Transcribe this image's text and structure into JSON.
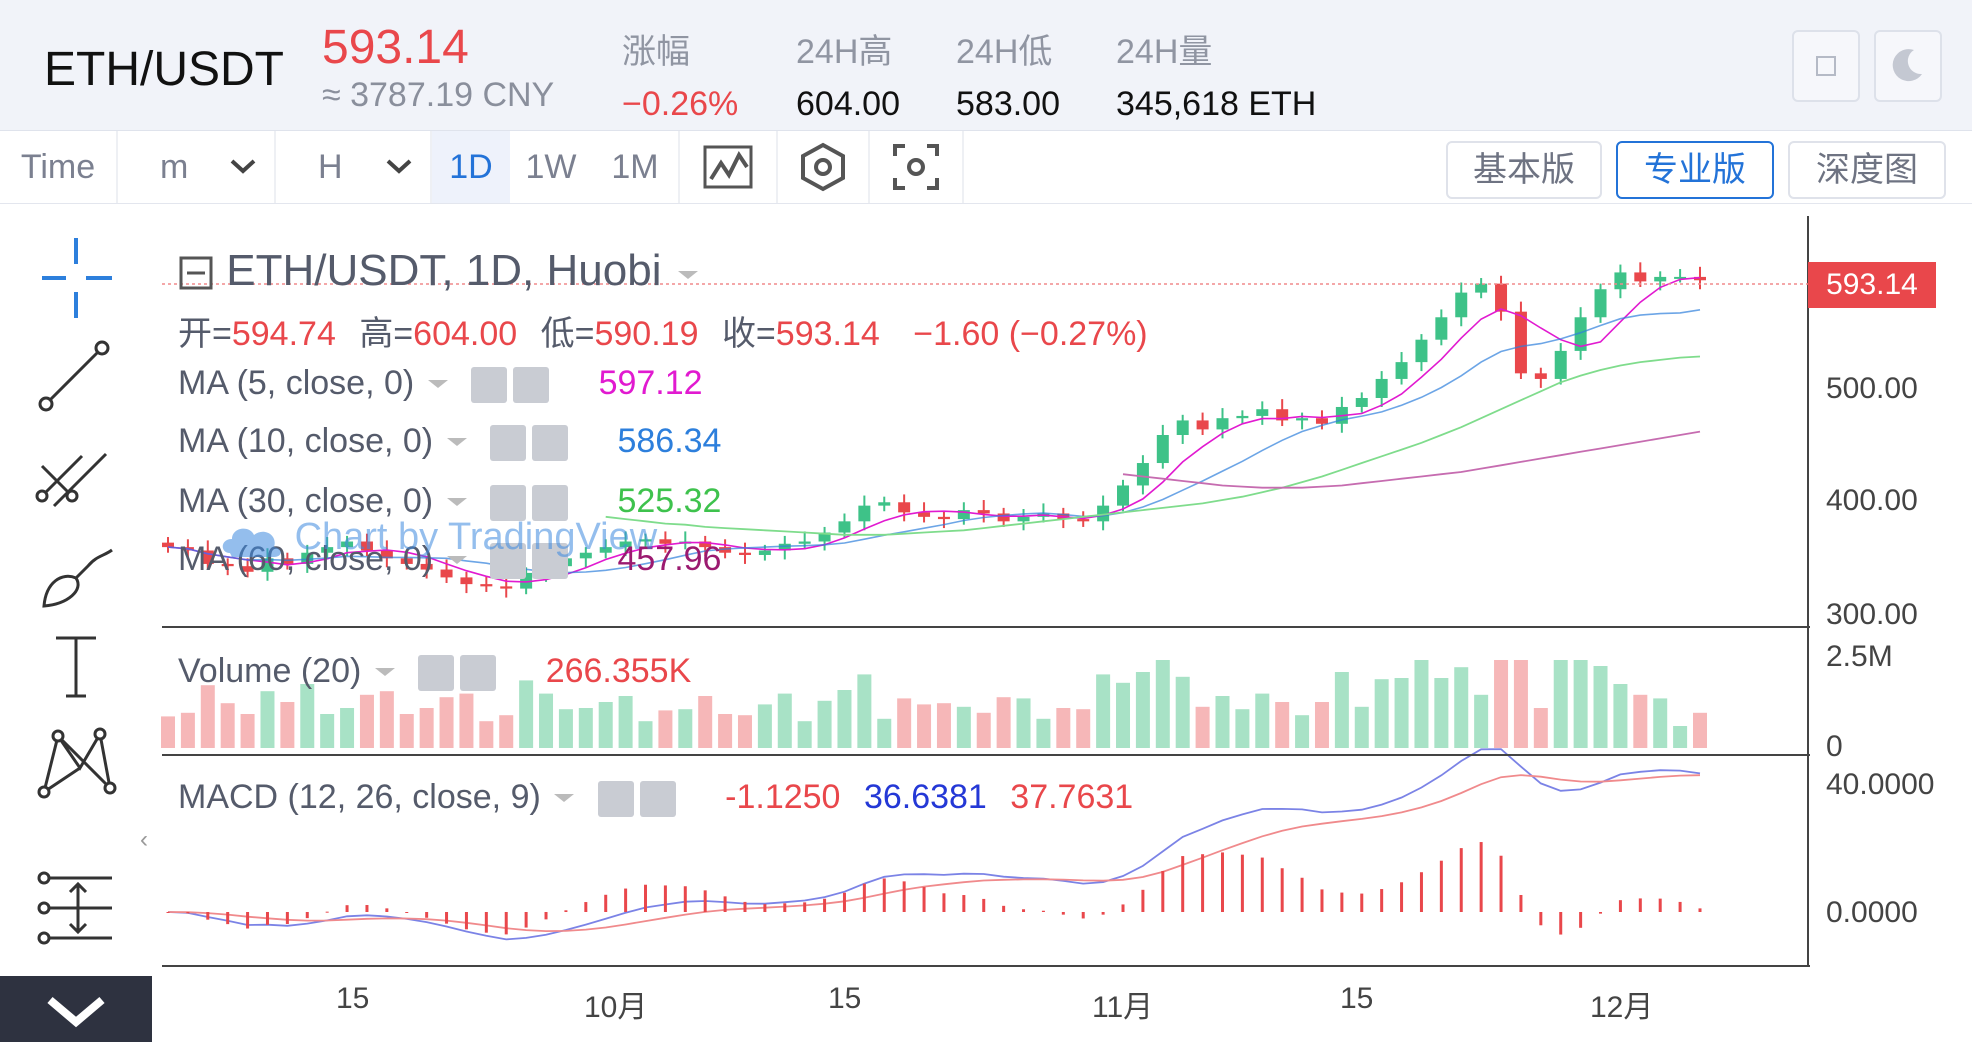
{
  "header": {
    "pair": "ETH/USDT",
    "price": "593.14",
    "cny": "≈ 3787.19 CNY",
    "stats": [
      {
        "label": "涨幅",
        "value": "−0.26%",
        "red": true
      },
      {
        "label": "24H高",
        "value": "604.00"
      },
      {
        "label": "24H低",
        "value": "583.00"
      },
      {
        "label": "24H量",
        "value": "345,618 ETH"
      }
    ]
  },
  "toolbar": {
    "time_label": "Time",
    "m_label": "m",
    "h_label": "H",
    "periods": [
      "1D",
      "1W",
      "1M"
    ],
    "active_period": "1D",
    "versions": [
      "基本版",
      "专业版",
      "深度图"
    ],
    "active_version": "专业版"
  },
  "chart_data": {
    "type": "candlestick",
    "title": "ETH/USDT, 1D, Huobi",
    "ohlc": {
      "open_label": "开=",
      "open": "594.74",
      "high_label": "高=",
      "high": "604.00",
      "low_label": "低=",
      "low": "590.19",
      "close_label": "收=",
      "close": "593.14",
      "change": "−1.60 (−0.27%)"
    },
    "last_price": "593.14",
    "price_axis": [
      "500.00",
      "400.00",
      "300.00"
    ],
    "volume_axis": [
      "2.5M",
      "0"
    ],
    "macd_axis": [
      "40.0000",
      "0.0000"
    ],
    "x_ticks": [
      "15",
      "10月",
      "15",
      "11月",
      "15",
      "12月"
    ],
    "ylim": [
      290,
      620
    ],
    "indicators": [
      {
        "name": "MA (5, close, 0)",
        "value": "597.12",
        "color": "#e11ad0"
      },
      {
        "name": "MA (10, close, 0)",
        "value": "586.34",
        "color": "#2d7fdc"
      },
      {
        "name": "MA (30, close, 0)",
        "value": "525.32",
        "color": "#3ec24d"
      },
      {
        "name": "MA (60, close, 0)",
        "value": "457.96",
        "color": "#9b1a70"
      }
    ],
    "volume": {
      "name": "Volume (20)",
      "value": "266.355K"
    },
    "macd": {
      "name": "MACD (12, 26, close, 9)",
      "values": [
        "-1.1250",
        "36.6381",
        "37.7631"
      ],
      "colors": [
        "#e9474b",
        "#2438d6",
        "#e9474b"
      ]
    },
    "watermark": "Chart by TradingView",
    "close_series": [
      355,
      352,
      340,
      338,
      333,
      345,
      340,
      350,
      355,
      360,
      352,
      345,
      340,
      335,
      328,
      322,
      320,
      318,
      332,
      338,
      345,
      350,
      355,
      360,
      362,
      358,
      360,
      355,
      350,
      348,
      352,
      358,
      360,
      368,
      378,
      392,
      395,
      386,
      382,
      380,
      388,
      385,
      378,
      382,
      385,
      380,
      378,
      392,
      410,
      430,
      455,
      468,
      460,
      470,
      472,
      478,
      468,
      470,
      465,
      480,
      488,
      505,
      520,
      540,
      560,
      582,
      590,
      565,
      510,
      505,
      530,
      560,
      585,
      600,
      592,
      596,
      596,
      593
    ],
    "ma30_series": [
      382,
      380,
      378,
      376,
      375,
      373,
      372,
      371,
      370,
      369,
      368,
      367,
      366,
      366,
      366,
      367,
      368,
      369,
      370,
      372,
      374,
      376,
      378,
      380,
      382,
      384,
      386,
      388,
      390,
      392,
      394,
      397,
      400,
      404,
      408,
      413,
      418,
      424,
      430,
      436,
      442,
      448,
      455,
      462,
      470,
      478,
      486,
      494,
      502,
      508,
      513,
      517,
      520,
      522,
      524,
      525
    ],
    "ma60_series": [
      420,
      418,
      416,
      414,
      412,
      410,
      409,
      408,
      408,
      408,
      409,
      410,
      412,
      414,
      416,
      418,
      420,
      422,
      425,
      428,
      431,
      434,
      437,
      440,
      443,
      446,
      449,
      452,
      455,
      458
    ]
  },
  "icons": {
    "crosshair": "crosshair-icon",
    "trend": "trend-line-icon",
    "pitchfork": "pitchfork-icon",
    "brush": "brush-icon",
    "text": "text-icon",
    "pattern": "pattern-icon",
    "measure": "measure-icon",
    "collapse": "collapse-icon",
    "fullscreen": "fullscreen-icon",
    "theme": "moon-icon"
  }
}
